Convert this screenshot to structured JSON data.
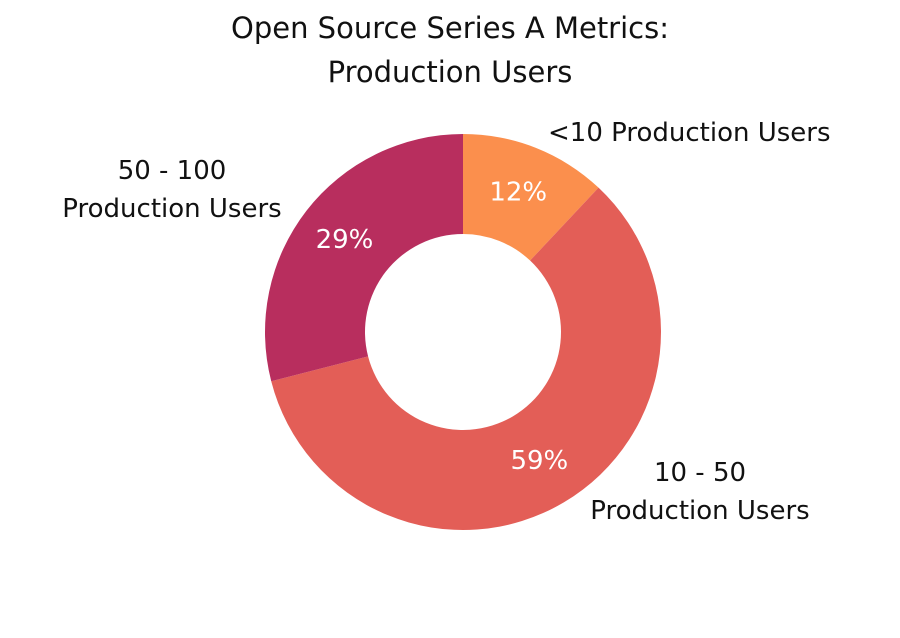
{
  "title": {
    "line1": "Open Source Series A Metrics:",
    "line2": "Production Users"
  },
  "colors": {
    "under_10": "#fb8f4d",
    "from_10_to_50": "#e35e57",
    "from_50_to_100": "#b82e5e",
    "label_inside": "#ffffff",
    "label_outside": "#111111"
  },
  "chart_data": {
    "type": "pie",
    "variant": "donut",
    "title": "Open Source Series A Metrics: Production Users",
    "slices": [
      {
        "label": "<10 Production Users",
        "value": 12,
        "display": "12%",
        "color": "#fb8f4d"
      },
      {
        "label": "10 - 50 Production Users",
        "value": 59,
        "display": "59%",
        "color": "#e35e57"
      },
      {
        "label": "50 - 100 Production Users",
        "value": 29,
        "display": "29%",
        "color": "#b82e5e"
      }
    ],
    "category_labels": {
      "under_10": {
        "line1": "<10 Production Users"
      },
      "from_10_to_50": {
        "line1": "10 - 50",
        "line2": "Production Users"
      },
      "from_50_to_100": {
        "line1": "50 - 100",
        "line2": "Production Users"
      }
    },
    "start": "top",
    "direction": "clockwise",
    "legend": "none"
  }
}
